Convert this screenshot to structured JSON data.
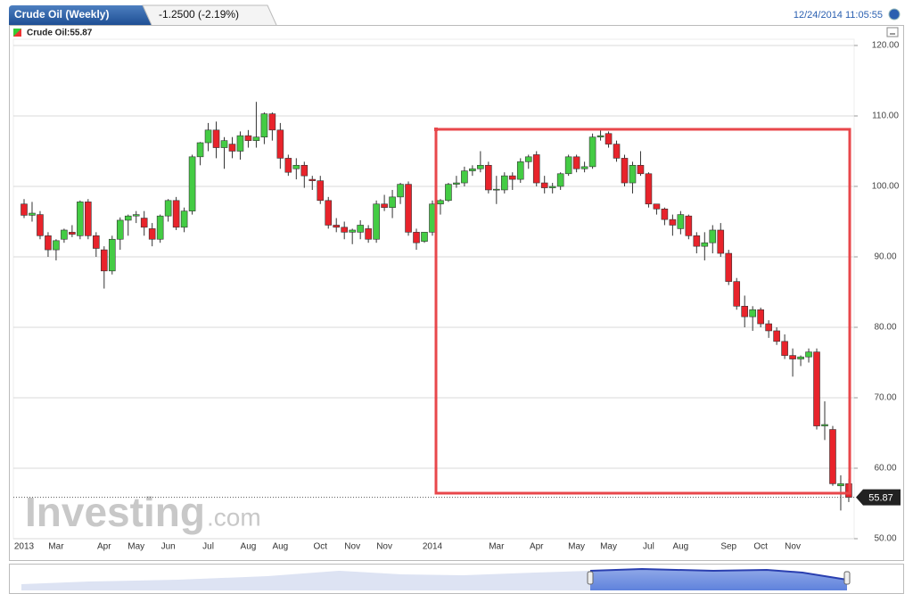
{
  "chart_data": {
    "type": "candlestick",
    "title": "Crude Oil (Weekly)",
    "change": "-1.2500 (-2.19%)",
    "timestamp": "12/24/2014 11:05:55",
    "legend": "Crude Oil:55.87",
    "watermark": "Investing",
    "watermark_suffix": ".com",
    "last_price": 55.87,
    "up_color": "#44cc44",
    "down_color": "#e8232b",
    "grid": true,
    "ylim": [
      50,
      120
    ],
    "yticks": [
      {
        "value": 50,
        "label": "50.00"
      },
      {
        "value": 60,
        "label": "60.00"
      },
      {
        "value": 70,
        "label": "70.00"
      },
      {
        "value": 80,
        "label": "80.00"
      },
      {
        "value": 90,
        "label": "90.00"
      },
      {
        "value": 100,
        "label": "100.00"
      },
      {
        "value": 110,
        "label": "110.00"
      },
      {
        "value": 120,
        "label": "120.00"
      }
    ],
    "categories": [
      "2013",
      null,
      null,
      null,
      "Mar",
      null,
      null,
      null,
      null,
      null,
      "Apr",
      null,
      null,
      null,
      "May",
      null,
      null,
      null,
      "Jun",
      null,
      null,
      null,
      null,
      "Jul",
      null,
      null,
      null,
      null,
      "Aug",
      null,
      null,
      null,
      "Aug",
      null,
      null,
      null,
      null,
      "Oct",
      null,
      null,
      null,
      "Nov",
      null,
      null,
      null,
      "Nov",
      null,
      null,
      null,
      null,
      null,
      "2014",
      null,
      null,
      null,
      null,
      null,
      null,
      null,
      "Mar",
      null,
      null,
      null,
      null,
      "Apr",
      null,
      null,
      null,
      null,
      "May",
      null,
      null,
      null,
      "May",
      null,
      null,
      null,
      null,
      "Jul",
      null,
      null,
      null,
      "Aug",
      null,
      null,
      null,
      null,
      null,
      "Sep",
      null,
      null,
      null,
      "Oct",
      null,
      null,
      null,
      "Nov",
      null,
      null,
      null,
      null,
      null,
      null,
      null
    ],
    "open": [
      97.5,
      95.9,
      96.0,
      93.0,
      91.0,
      92.5,
      93.5,
      93.0,
      97.8,
      93.0,
      91.0,
      88.0,
      92.5,
      95.2,
      95.8,
      95.5,
      94.0,
      92.5,
      95.8,
      98.0,
      94.2,
      96.5,
      104.2,
      106.2,
      108.0,
      105.5,
      106.0,
      105.0,
      107.2,
      106.5,
      107.0,
      110.3,
      108.0,
      104.0,
      102.5,
      103.0,
      101.0,
      100.8,
      98.0,
      94.5,
      94.2,
      93.5,
      93.5,
      94.0,
      92.5,
      97.5,
      97.0,
      98.5,
      100.3,
      93.5,
      92.2,
      93.5,
      97.5,
      98.0,
      100.3,
      100.5,
      102.2,
      102.5,
      103.0,
      99.5,
      99.5,
      101.5,
      101.0,
      103.5,
      104.5,
      100.5,
      99.8,
      100.0,
      101.8,
      104.2,
      102.5,
      102.8,
      107.0,
      107.5,
      106.0,
      104.0,
      100.5,
      103.0,
      101.8,
      97.5,
      96.8,
      95.3,
      94.0,
      95.8,
      93.0,
      91.5,
      92.0,
      93.8,
      90.5,
      86.5,
      83.0,
      81.5,
      82.5,
      80.5,
      79.5,
      78.0,
      76.0,
      75.5,
      75.8,
      76.5,
      66.0,
      65.5,
      57.5,
      57.8
    ],
    "high": [
      98.2,
      97.8,
      96.5,
      93.5,
      92.5,
      94.0,
      94.5,
      98.0,
      98.2,
      93.5,
      91.5,
      93.0,
      95.6,
      96.0,
      96.5,
      96.5,
      94.8,
      96.0,
      98.2,
      98.5,
      97.0,
      104.5,
      106.3,
      109.0,
      109.2,
      107.0,
      107.0,
      107.8,
      108.0,
      112.0,
      110.5,
      110.5,
      109.0,
      104.5,
      104.0,
      103.5,
      101.5,
      101.5,
      98.5,
      95.5,
      95.0,
      94.0,
      95.2,
      94.5,
      98.0,
      98.8,
      99.5,
      100.5,
      100.7,
      94.0,
      93.5,
      98.0,
      98.2,
      100.5,
      101.5,
      102.8,
      103.0,
      105.0,
      103.5,
      101.5,
      102.0,
      102.0,
      104.0,
      104.5,
      105.0,
      101.5,
      100.5,
      102.0,
      104.5,
      104.5,
      103.5,
      107.5,
      108.0,
      107.8,
      106.5,
      104.5,
      103.5,
      105.0,
      102.0,
      97.5,
      97.0,
      96.0,
      96.5,
      96.0,
      93.5,
      93.5,
      94.5,
      94.8,
      91.0,
      87.0,
      84.5,
      83.0,
      82.8,
      81.0,
      80.0,
      79.0,
      77.0,
      76.0,
      77.0,
      77.0,
      69.5,
      66.0,
      59.0,
      58.5
    ],
    "low": [
      95.5,
      95.0,
      92.5,
      90.0,
      89.5,
      92.0,
      92.8,
      92.5,
      92.5,
      90.0,
      85.5,
      87.5,
      91.0,
      93.0,
      94.8,
      93.0,
      91.5,
      92.0,
      95.0,
      93.8,
      93.5,
      96.0,
      103.0,
      105.0,
      104.0,
      102.5,
      104.0,
      103.8,
      105.5,
      105.5,
      106.0,
      106.5,
      102.5,
      101.5,
      101.0,
      99.8,
      99.5,
      97.5,
      94.0,
      93.5,
      92.5,
      91.8,
      92.5,
      92.0,
      92.0,
      96.5,
      95.5,
      97.5,
      93.0,
      91.0,
      92.0,
      93.0,
      96.0,
      97.8,
      99.8,
      100.0,
      101.5,
      102.0,
      99.0,
      97.5,
      99.0,
      99.5,
      100.5,
      102.5,
      100.0,
      99.0,
      99.0,
      99.5,
      101.5,
      102.0,
      102.0,
      102.5,
      106.5,
      105.5,
      103.5,
      100.0,
      99.0,
      101.5,
      97.0,
      96.0,
      94.5,
      93.0,
      93.2,
      92.5,
      90.5,
      89.5,
      90.5,
      90.0,
      86.0,
      82.5,
      80.0,
      79.5,
      80.0,
      78.5,
      77.5,
      75.5,
      73.0,
      74.5,
      75.0,
      65.5,
      64.0,
      57.5,
      54.0,
      55.2
    ],
    "close": [
      95.9,
      96.2,
      93.0,
      91.0,
      92.3,
      93.8,
      93.2,
      97.8,
      93.0,
      91.2,
      88.0,
      92.5,
      95.2,
      95.8,
      96.0,
      94.2,
      92.5,
      95.8,
      98.0,
      94.2,
      96.5,
      104.2,
      106.2,
      108.0,
      105.5,
      106.5,
      105.0,
      107.2,
      106.5,
      107.0,
      110.3,
      108.0,
      104.0,
      102.0,
      103.0,
      101.5,
      100.8,
      98.0,
      94.5,
      94.2,
      93.5,
      93.8,
      94.5,
      92.5,
      97.5,
      97.0,
      98.5,
      100.3,
      93.5,
      92.0,
      93.5,
      97.5,
      98.0,
      100.3,
      100.5,
      102.2,
      102.5,
      103.0,
      99.5,
      99.6,
      101.5,
      101.0,
      103.5,
      104.2,
      100.5,
      99.8,
      100.0,
      101.8,
      104.2,
      102.5,
      102.8,
      107.0,
      107.2,
      106.0,
      104.0,
      100.5,
      103.0,
      101.8,
      97.5,
      96.8,
      95.3,
      94.5,
      96.0,
      93.0,
      91.5,
      92.0,
      93.8,
      90.5,
      86.5,
      83.0,
      81.5,
      82.5,
      80.5,
      79.5,
      78.0,
      76.0,
      75.5,
      75.8,
      76.5,
      66.0,
      66.2,
      57.8,
      57.8,
      55.87
    ]
  }
}
